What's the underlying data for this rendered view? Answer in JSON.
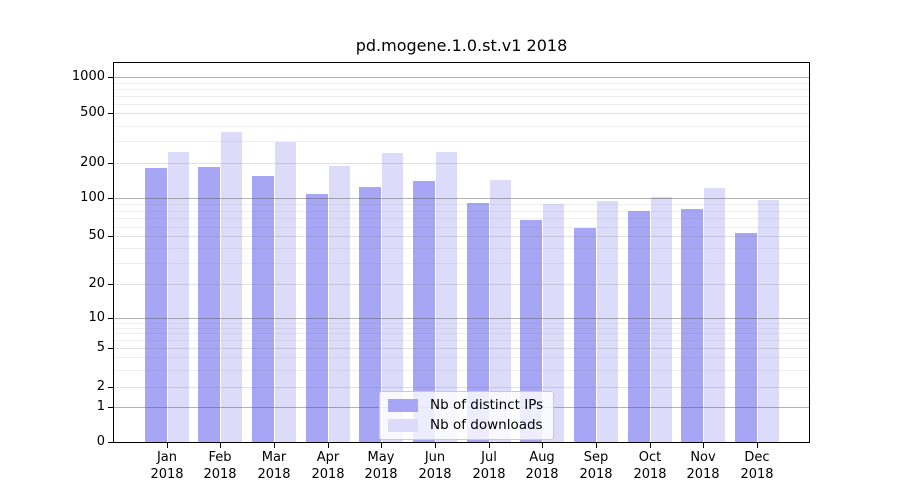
{
  "title": "pd.mogene.1.0.st.v1 2018",
  "legend": {
    "items": [
      {
        "label": "Nb of distinct IPs",
        "color": "#a6a6f4"
      },
      {
        "label": "Nb of downloads",
        "color": "#dcdcfa"
      }
    ]
  },
  "x_axis": {
    "year": "2018",
    "months": [
      "Jan",
      "Feb",
      "Mar",
      "Apr",
      "May",
      "Jun",
      "Jul",
      "Aug",
      "Sep",
      "Oct",
      "Nov",
      "Dec"
    ]
  },
  "y_axis": {
    "tick_labels": [
      "0",
      "1",
      "2",
      "5",
      "10",
      "20",
      "50",
      "100",
      "200",
      "500",
      "1000"
    ]
  },
  "chart_data": {
    "type": "bar",
    "title": "pd.mogene.1.0.st.v1 2018",
    "categories": [
      "Jan 2018",
      "Feb 2018",
      "Mar 2018",
      "Apr 2018",
      "May 2018",
      "Jun 2018",
      "Jul 2018",
      "Aug 2018",
      "Sep 2018",
      "Oct 2018",
      "Nov 2018",
      "Dec 2018"
    ],
    "series": [
      {
        "name": "Nb of distinct IPs",
        "color": "#a6a6f4",
        "values": [
          180,
          185,
          156,
          110,
          126,
          140,
          92,
          67,
          58,
          80,
          83,
          53
        ]
      },
      {
        "name": "Nb of downloads",
        "color": "#dcdcfa",
        "values": [
          245,
          355,
          294,
          188,
          239,
          243,
          144,
          90,
          95,
          102,
          122,
          98
        ]
      }
    ],
    "yscale": "symlog",
    "yticks": [
      0,
      1,
      2,
      5,
      10,
      20,
      50,
      100,
      200,
      500,
      1000
    ],
    "ylim": [
      0,
      1400
    ],
    "grid": true,
    "legend_position": "lower center",
    "xlabel": "",
    "ylabel": ""
  }
}
